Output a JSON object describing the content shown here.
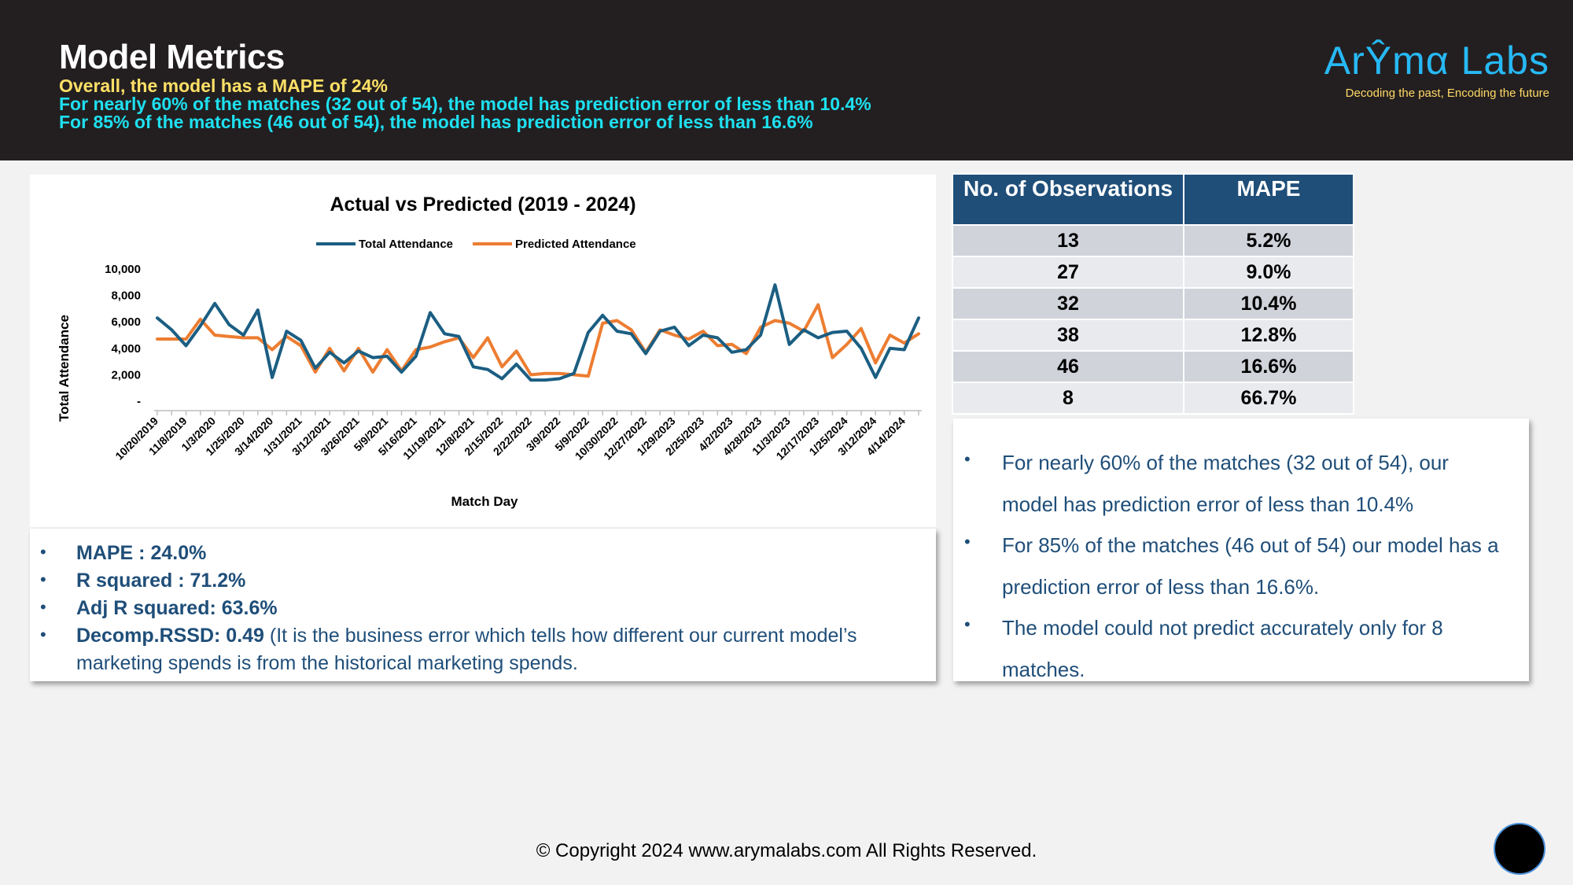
{
  "header": {
    "title": "Model Metrics",
    "line1": "Overall, the model has a MAPE of 24%",
    "line2": "For nearly 60% of the matches (32 out of 54), the model has prediction error of less than 10.4%",
    "line3": "For 85% of the matches (46 out of 54), the model has prediction error of less than 16.6%"
  },
  "logo": {
    "name": "ArŶmα Labs",
    "tagline": "Decoding the past, Encoding the future"
  },
  "table": {
    "headers": [
      "No. of Observations",
      "MAPE"
    ],
    "rows": [
      [
        "13",
        "5.2%"
      ],
      [
        "27",
        "9.0%"
      ],
      [
        "32",
        "10.4%"
      ],
      [
        "38",
        "12.8%"
      ],
      [
        "46",
        "16.6%"
      ],
      [
        "8",
        "66.7%"
      ]
    ]
  },
  "left_bullets": [
    {
      "bold": "MAPE : 24.0%",
      "rest": ""
    },
    {
      "bold": "R squared : 71.2%",
      "rest": ""
    },
    {
      "bold": "Adj R squared: 63.6%",
      "rest": ""
    },
    {
      "bold": "Decomp.RSSD: 0.49",
      "rest": " (It is the business error which tells how different our current model’s marketing spends is from the historical marketing spends."
    }
  ],
  "right_bullets": [
    "For nearly 60% of the matches (32 out of 54), our model has prediction error of less than 10.4%",
    "For 85% of the matches (46 out of 54) our model has a prediction error of less than 16.6%.",
    "The model could not predict accurately only for 8 matches."
  ],
  "footer": "© Copyright 2024 www.arymalabs.com All Rights Reserved.",
  "colors": {
    "header_bg": "#231f20",
    "actual": "#1b5e82",
    "predicted": "#ed7d31",
    "table_header": "#1f4e79"
  },
  "chart_data": {
    "type": "line",
    "title": "Actual vs Predicted (2019 - 2024)",
    "xlabel": "Match Day",
    "ylabel": "Total Attendance",
    "ylim": [
      0,
      10000
    ],
    "yticks": [
      "-",
      "2,000",
      "4,000",
      "6,000",
      "8,000",
      "10,000"
    ],
    "tick_labels": [
      "10/20/2019",
      "11/8/2019",
      "1/3/2020",
      "1/25/2020",
      "3/14/2020",
      "1/31/2021",
      "3/12/2021",
      "3/26/2021",
      "5/9/2021",
      "5/16/2021",
      "11/19/2021",
      "12/8/2021",
      "2/15/2022",
      "2/22/2022",
      "3/9/2022",
      "5/9/2022",
      "10/30/2022",
      "12/27/2022",
      "1/29/2023",
      "2/25/2023",
      "4/2/2023",
      "4/28/2023",
      "11/3/2023",
      "12/17/2023",
      "1/25/2024",
      "3/12/2024",
      "4/14/2024"
    ],
    "legend_position": "top",
    "grid": false,
    "series": [
      {
        "name": "Total Attendance",
        "values": [
          6300,
          5400,
          4200,
          5700,
          7400,
          5800,
          5000,
          6900,
          1800,
          5300,
          4600,
          2500,
          3700,
          2900,
          3800,
          3300,
          3400,
          2200,
          3400,
          6700,
          5100,
          4900,
          2600,
          2400,
          1700,
          2800,
          1600,
          1600,
          1700,
          2100,
          5200,
          6500,
          5300,
          5100,
          3600,
          5300,
          5600,
          4200,
          5000,
          4800,
          3700,
          3900,
          5000,
          8800,
          4300,
          5400,
          4800,
          5200,
          5300,
          4000,
          1800,
          4000,
          3900,
          6300
        ]
      },
      {
        "name": "Predicted Attendance",
        "values": [
          4700,
          4700,
          4700,
          6200,
          5000,
          4900,
          4800,
          4800,
          3900,
          4900,
          4200,
          2200,
          4000,
          2300,
          4000,
          2200,
          3900,
          2300,
          3900,
          4100,
          4500,
          4800,
          3300,
          4800,
          2600,
          3800,
          2000,
          2100,
          2100,
          2000,
          1900,
          5900,
          6100,
          5400,
          3700,
          5400,
          5000,
          4700,
          5300,
          4200,
          4300,
          3600,
          5600,
          6100,
          5900,
          5300,
          7300,
          3300,
          4300,
          5500,
          2900,
          5000,
          4400,
          5100
        ]
      }
    ]
  }
}
